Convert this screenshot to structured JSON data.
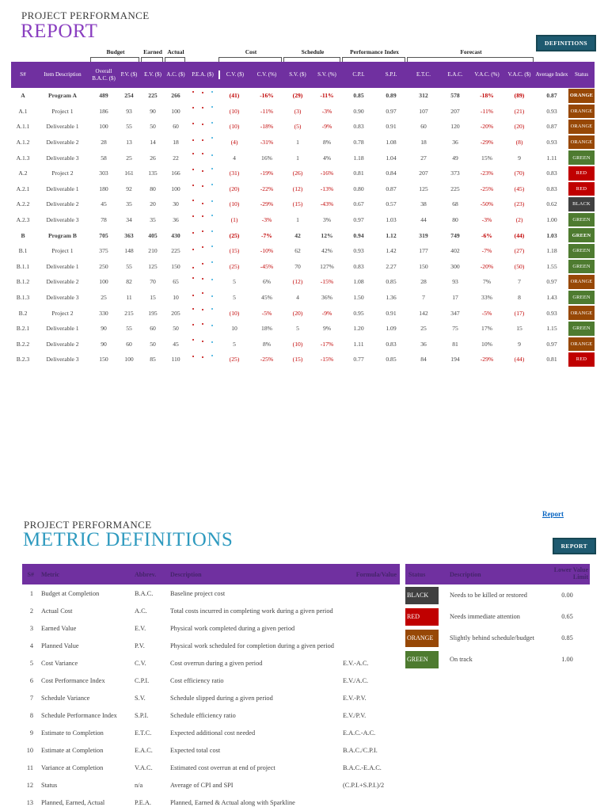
{
  "colors": {
    "header_purple": "#7030A0",
    "report_title_purple": "#8A3FC0",
    "definitions_title_teal": "#2E9ABF",
    "button_teal": "#1E5A70",
    "link_blue": "#0563C1",
    "negative_red": "#C00000",
    "spark_colors": [
      "#C00000",
      "#C00000",
      "#2FA8DC"
    ],
    "status_colors": {
      "BLACK": "#404040",
      "RED": "#C00000",
      "ORANGE": "#974806",
      "GREEN": "#4E7B30"
    }
  },
  "report": {
    "eyebrow": "PROJECT PERFORMANCE",
    "title": "REPORT",
    "definitions_button": "DEFINITIONS",
    "groups": [
      {
        "label": "Budget",
        "start": 2,
        "end": 3
      },
      {
        "label": "Earned",
        "start": 4,
        "end": 4
      },
      {
        "label": "Actual",
        "start": 5,
        "end": 5
      },
      {
        "label": "Cost",
        "start": 7,
        "end": 8
      },
      {
        "label": "Schedule",
        "start": 9,
        "end": 10
      },
      {
        "label": "Performance Index",
        "start": 11,
        "end": 12
      },
      {
        "label": "Forecast",
        "start": 13,
        "end": 16
      }
    ],
    "columns": [
      "S#",
      "Item Description",
      "Overall B.A.C. ($)",
      "P.V. ($)",
      "E.V. ($)",
      "A.C. ($)",
      "P.E.A. ($)",
      "C.V. ($)",
      "C.V. (%)",
      "S.V. ($)",
      "S.V. (%)",
      "C.P.I.",
      "S.P.I.",
      "E.T.C.",
      "E.A.C.",
      "V.A.C. (%)",
      "V.A.C. ($)",
      "Average Index",
      "Status"
    ],
    "rows": [
      {
        "id": "A",
        "desc": "Program A",
        "bold": true,
        "bac": 489,
        "pv": 254,
        "ev": 225,
        "ac": 266,
        "cv": "(41)",
        "cv_pct": "-16%",
        "sv": "(29)",
        "sv_pct": "-11%",
        "cpi": "0.85",
        "spi": "0.89",
        "etc": "312",
        "eac": "578",
        "vac_pct": "-18%",
        "vac": "(89)",
        "avg": "0.87",
        "status": "ORANGE"
      },
      {
        "id": "A.1",
        "desc": "Project 1",
        "bold": false,
        "bac": 186,
        "pv": 93,
        "ev": 90,
        "ac": 100,
        "cv": "(10)",
        "cv_pct": "-11%",
        "sv": "(3)",
        "sv_pct": "-3%",
        "cpi": "0.90",
        "spi": "0.97",
        "etc": "107",
        "eac": "207",
        "vac_pct": "-11%",
        "vac": "(21)",
        "avg": "0.93",
        "status": "ORANGE"
      },
      {
        "id": "A.1.1",
        "desc": "Deliverable 1",
        "bold": false,
        "bac": 100,
        "pv": 55,
        "ev": 50,
        "ac": 60,
        "cv": "(10)",
        "cv_pct": "-18%",
        "sv": "(5)",
        "sv_pct": "-9%",
        "cpi": "0.83",
        "spi": "0.91",
        "etc": "60",
        "eac": "120",
        "vac_pct": "-20%",
        "vac": "(20)",
        "avg": "0.87",
        "status": "ORANGE"
      },
      {
        "id": "A.1.2",
        "desc": "Deliverable 2",
        "bold": false,
        "bac": 28,
        "pv": 13,
        "ev": 14,
        "ac": 18,
        "cv": "(4)",
        "cv_pct": "-31%",
        "sv": "1",
        "sv_pct": "8%",
        "cpi": "0.78",
        "spi": "1.08",
        "etc": "18",
        "eac": "36",
        "vac_pct": "-29%",
        "vac": "(8)",
        "avg": "0.93",
        "status": "ORANGE"
      },
      {
        "id": "A.1.3",
        "desc": "Deliverable 3",
        "bold": false,
        "bac": 58,
        "pv": 25,
        "ev": 26,
        "ac": 22,
        "cv": "4",
        "cv_pct": "16%",
        "sv": "1",
        "sv_pct": "4%",
        "cpi": "1.18",
        "spi": "1.04",
        "etc": "27",
        "eac": "49",
        "vac_pct": "15%",
        "vac": "9",
        "avg": "1.11",
        "status": "GREEN"
      },
      {
        "id": "A.2",
        "desc": "Project 2",
        "bold": false,
        "bac": 303,
        "pv": 161,
        "ev": 135,
        "ac": 166,
        "cv": "(31)",
        "cv_pct": "-19%",
        "sv": "(26)",
        "sv_pct": "-16%",
        "cpi": "0.81",
        "spi": "0.84",
        "etc": "207",
        "eac": "373",
        "vac_pct": "-23%",
        "vac": "(70)",
        "avg": "0.83",
        "status": "RED"
      },
      {
        "id": "A.2.1",
        "desc": "Deliverable 1",
        "bold": false,
        "bac": 180,
        "pv": 92,
        "ev": 80,
        "ac": 100,
        "cv": "(20)",
        "cv_pct": "-22%",
        "sv": "(12)",
        "sv_pct": "-13%",
        "cpi": "0.80",
        "spi": "0.87",
        "etc": "125",
        "eac": "225",
        "vac_pct": "-25%",
        "vac": "(45)",
        "avg": "0.83",
        "status": "RED"
      },
      {
        "id": "A.2.2",
        "desc": "Deliverable 2",
        "bold": false,
        "bac": 45,
        "pv": 35,
        "ev": 20,
        "ac": 30,
        "cv": "(10)",
        "cv_pct": "-29%",
        "sv": "(15)",
        "sv_pct": "-43%",
        "cpi": "0.67",
        "spi": "0.57",
        "etc": "38",
        "eac": "68",
        "vac_pct": "-50%",
        "vac": "(23)",
        "avg": "0.62",
        "status": "BLACK"
      },
      {
        "id": "A.2.3",
        "desc": "Deliverable 3",
        "bold": false,
        "bac": 78,
        "pv": 34,
        "ev": 35,
        "ac": 36,
        "cv": "(1)",
        "cv_pct": "-3%",
        "sv": "1",
        "sv_pct": "3%",
        "cpi": "0.97",
        "spi": "1.03",
        "etc": "44",
        "eac": "80",
        "vac_pct": "-3%",
        "vac": "(2)",
        "avg": "1.00",
        "status": "GREEN"
      },
      {
        "id": "B",
        "desc": "Program B",
        "bold": true,
        "bac": 705,
        "pv": 363,
        "ev": 405,
        "ac": 430,
        "cv": "(25)",
        "cv_pct": "-7%",
        "sv": "42",
        "sv_pct": "12%",
        "cpi": "0.94",
        "spi": "1.12",
        "etc": "319",
        "eac": "749",
        "vac_pct": "-6%",
        "vac": "(44)",
        "avg": "1.03",
        "status": "GREEN"
      },
      {
        "id": "B.1",
        "desc": "Project 1",
        "bold": false,
        "bac": 375,
        "pv": 148,
        "ev": 210,
        "ac": 225,
        "cv": "(15)",
        "cv_pct": "-10%",
        "sv": "62",
        "sv_pct": "42%",
        "cpi": "0.93",
        "spi": "1.42",
        "etc": "177",
        "eac": "402",
        "vac_pct": "-7%",
        "vac": "(27)",
        "avg": "1.18",
        "status": "GREEN"
      },
      {
        "id": "B.1.1",
        "desc": "Deliverable 1",
        "bold": false,
        "bac": 250,
        "pv": 55,
        "ev": 125,
        "ac": 150,
        "cv": "(25)",
        "cv_pct": "-45%",
        "sv": "70",
        "sv_pct": "127%",
        "cpi": "0.83",
        "spi": "2.27",
        "etc": "150",
        "eac": "300",
        "vac_pct": "-20%",
        "vac": "(50)",
        "avg": "1.55",
        "status": "GREEN"
      },
      {
        "id": "B.1.2",
        "desc": "Deliverable 2",
        "bold": false,
        "bac": 100,
        "pv": 82,
        "ev": 70,
        "ac": 65,
        "cv": "5",
        "cv_pct": "6%",
        "sv": "(12)",
        "sv_pct": "-15%",
        "cpi": "1.08",
        "spi": "0.85",
        "etc": "28",
        "eac": "93",
        "vac_pct": "7%",
        "vac": "7",
        "avg": "0.97",
        "status": "ORANGE"
      },
      {
        "id": "B.1.3",
        "desc": "Deliverable 3",
        "bold": false,
        "bac": 25,
        "pv": 11,
        "ev": 15,
        "ac": 10,
        "cv": "5",
        "cv_pct": "45%",
        "sv": "4",
        "sv_pct": "36%",
        "cpi": "1.50",
        "spi": "1.36",
        "etc": "7",
        "eac": "17",
        "vac_pct": "33%",
        "vac": "8",
        "avg": "1.43",
        "status": "GREEN"
      },
      {
        "id": "B.2",
        "desc": "Project 2",
        "bold": false,
        "bac": 330,
        "pv": 215,
        "ev": 195,
        "ac": 205,
        "cv": "(10)",
        "cv_pct": "-5%",
        "sv": "(20)",
        "sv_pct": "-9%",
        "cpi": "0.95",
        "spi": "0.91",
        "etc": "142",
        "eac": "347",
        "vac_pct": "-5%",
        "vac": "(17)",
        "avg": "0.93",
        "status": "ORANGE"
      },
      {
        "id": "B.2.1",
        "desc": "Deliverable 1",
        "bold": false,
        "bac": 90,
        "pv": 55,
        "ev": 60,
        "ac": 50,
        "cv": "10",
        "cv_pct": "18%",
        "sv": "5",
        "sv_pct": "9%",
        "cpi": "1.20",
        "spi": "1.09",
        "etc": "25",
        "eac": "75",
        "vac_pct": "17%",
        "vac": "15",
        "avg": "1.15",
        "status": "GREEN"
      },
      {
        "id": "B.2.2",
        "desc": "Deliverable 2",
        "bold": false,
        "bac": 90,
        "pv": 60,
        "ev": 50,
        "ac": 45,
        "cv": "5",
        "cv_pct": "8%",
        "sv": "(10)",
        "sv_pct": "-17%",
        "cpi": "1.11",
        "spi": "0.83",
        "etc": "36",
        "eac": "81",
        "vac_pct": "10%",
        "vac": "9",
        "avg": "0.97",
        "status": "ORANGE"
      },
      {
        "id": "B.2.3",
        "desc": "Deliverable 3",
        "bold": false,
        "bac": 150,
        "pv": 100,
        "ev": 85,
        "ac": 110,
        "cv": "(25)",
        "cv_pct": "-25%",
        "sv": "(15)",
        "sv_pct": "-15%",
        "cpi": "0.77",
        "spi": "0.85",
        "etc": "84",
        "eac": "194",
        "vac_pct": "-29%",
        "vac": "(44)",
        "avg": "0.81",
        "status": "RED"
      }
    ]
  },
  "definitions": {
    "back_link": "Report",
    "eyebrow": "PROJECT PERFORMANCE",
    "title": "METRIC DEFINITIONS",
    "report_button": "REPORT",
    "table": {
      "columns": [
        "S#",
        "Metric",
        "Abbrev.",
        "Description",
        "Formula/Value"
      ],
      "rows": [
        [
          "1",
          "Budget at Completion",
          "B.A.C.",
          "Baseline project cost",
          ""
        ],
        [
          "2",
          "Actual Cost",
          "A.C.",
          "Total costs incurred in completing work during a given period",
          ""
        ],
        [
          "3",
          "Earned Value",
          "E.V.",
          "Physical work completed during a given period",
          ""
        ],
        [
          "4",
          "Planned Value",
          "P.V.",
          "Physical work scheduled for completion during a given period",
          ""
        ],
        [
          "5",
          "Cost Variance",
          "C.V.",
          "Cost overrun during a given period",
          "E.V.-A.C."
        ],
        [
          "6",
          "Cost Performance Index",
          "C.P.I.",
          "Cost efficiency ratio",
          "E.V./A.C."
        ],
        [
          "7",
          "Schedule Variance",
          "S.V.",
          "Schedule slipped during a given period",
          "E.V.-P.V."
        ],
        [
          "8",
          "Schedule Performance Index",
          "S.P.I.",
          "Schedule efficiency ratio",
          "E.V./P.V."
        ],
        [
          "9",
          "Estimate to Completion",
          "E.T.C.",
          "Expected additional cost needed",
          "E.A.C.-A.C."
        ],
        [
          "10",
          "Estimate at Completion",
          "E.A.C.",
          "Expected total cost",
          "B.A.C./C.P.I."
        ],
        [
          "11",
          "Variance at Completion",
          "V.A.C.",
          "Estimated cost overrun at end of project",
          "B.A.C.-E.A.C."
        ],
        [
          "12",
          "Status",
          "n/a",
          "Average of CPI and SPI",
          "(C.P.I.+S.P.I.)/2"
        ],
        [
          "13",
          "Planned, Earned, Actual",
          "P.E.A.",
          "Planned, Earned & Actual along with Sparkline",
          ""
        ]
      ]
    },
    "legend": {
      "columns": [
        "Status",
        "Description",
        "Lower Value Limit"
      ],
      "rows": [
        {
          "status": "BLACK",
          "color": "#404040",
          "description": "Needs to be killed or restored",
          "limit": "0.00"
        },
        {
          "status": "RED",
          "color": "#C00000",
          "description": "Needs immediate attention",
          "limit": "0.65"
        },
        {
          "status": "ORANGE",
          "color": "#974806",
          "description": "Slightly behind schedule/budget",
          "limit": "0.85"
        },
        {
          "status": "GREEN",
          "color": "#4E7B30",
          "description": "On track",
          "limit": "1.00"
        }
      ]
    }
  }
}
